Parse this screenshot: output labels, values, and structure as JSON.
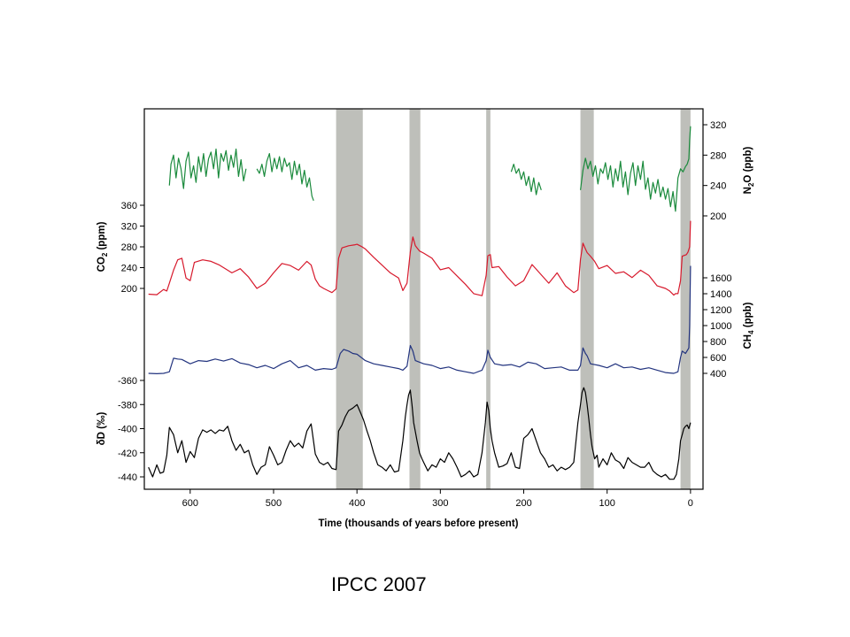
{
  "credit": "IPCC 2007",
  "chart_data": {
    "type": "line",
    "xlabel": "Time (thousands of years before present)",
    "xlim": [
      655,
      -15
    ],
    "x_ticks": [
      600,
      500,
      400,
      300,
      200,
      100,
      0
    ],
    "shaded_intervals": [
      [
        425,
        393
      ],
      [
        337,
        324
      ],
      [
        245,
        240
      ],
      [
        132,
        116
      ],
      [
        12,
        0
      ]
    ],
    "grid": false,
    "axes": {
      "n2o": {
        "label": [
          "N",
          "2",
          "O (ppb)"
        ],
        "side": "right",
        "ticks": [
          200,
          240,
          280,
          320
        ]
      },
      "co2": {
        "label": [
          "CO",
          "2",
          " (ppm)"
        ],
        "side": "left",
        "ticks": [
          200,
          240,
          280,
          320,
          360
        ]
      },
      "ch4": {
        "label": [
          "CH",
          "4",
          " (ppb)"
        ],
        "side": "right",
        "ticks": [
          400,
          600,
          800,
          1000,
          1200,
          1400,
          1600
        ]
      },
      "dd": {
        "label": [
          "δ",
          "D (‰)"
        ],
        "side": "left",
        "ticks": [
          -440,
          -420,
          -400,
          -380,
          -360
        ]
      }
    },
    "series": [
      {
        "key": "n2o",
        "color": "#1a8a3c",
        "segments": [
          {
            "x": [
              625,
              623,
              620,
              617,
              614,
              611,
              608,
              605,
              602,
              599,
              596,
              593,
              590,
              587,
              584,
              581,
              578,
              575,
              572,
              569,
              566,
              563,
              560,
              557,
              554,
              551,
              548,
              545,
              542,
              539,
              536,
              533
            ],
            "y": [
              240,
              268,
              280,
              250,
              276,
              262,
              236,
              272,
              284,
              250,
              266,
              244,
              278,
              258,
              282,
              252,
              275,
              284,
              262,
              288,
              250,
              282,
              272,
              286,
              260,
              280,
              264,
              288,
              252,
              274,
              246,
              262
            ]
          },
          {
            "x": [
              520,
              517,
              514,
              511,
              508,
              505,
              502,
              499,
              496,
              493,
              490,
              487,
              484,
              481,
              478,
              475,
              472,
              469,
              466,
              463,
              460,
              457,
              454,
              452
            ],
            "y": [
              262,
              256,
              268,
              252,
              272,
              282,
              258,
              276,
              262,
              278,
              258,
              276,
              265,
              270,
              248,
              272,
              254,
              268,
              242,
              260,
              238,
              250,
              226,
              220
            ]
          },
          {
            "x": [
              215,
              212,
              209,
              206,
              203,
              200,
              197,
              194,
              191,
              188,
              185,
              182,
              179
            ],
            "y": [
              258,
              268,
              256,
              262,
              248,
              258,
              240,
              252,
              232,
              250,
              228,
              244,
              234
            ]
          },
          {
            "x": [
              132,
              129,
              126,
              123,
              120,
              117,
              114,
              111,
              108,
              105,
              102,
              99,
              96,
              93,
              90,
              87,
              84,
              81,
              78,
              75,
              72,
              69,
              66,
              63,
              60,
              57,
              54,
              51,
              48,
              45,
              42,
              39,
              36,
              33,
              30,
              27,
              24,
              21,
              18,
              15,
              12,
              9,
              6,
              4,
              2,
              1,
              0
            ],
            "y": [
              234,
              260,
              276,
              262,
              272,
              252,
              266,
              242,
              262,
              256,
              270,
              248,
              266,
              238,
              262,
              246,
              272,
              238,
              258,
              228,
              256,
              270,
              240,
              266,
              248,
              272,
              235,
              250,
              222,
              244,
              230,
              248,
              225,
              238,
              222,
              236,
              212,
              232,
              206,
              250,
              262,
              258,
              265,
              268,
              275,
              300,
              318
            ]
          }
        ]
      },
      {
        "key": "co2",
        "color": "#d7192c",
        "segments": [
          {
            "x": [
              650,
              640,
              632,
              628,
              625,
              620,
              615,
              610,
              605,
              600,
              595,
              585,
              575,
              565,
              550,
              540,
              530,
              520,
              510,
              500,
              490,
              480,
              470,
              460,
              455,
              450,
              445,
              440,
              435,
              430,
              425,
              422,
              418,
              410,
              402,
              400,
              395,
              390,
              380,
              370,
              360,
              350,
              345,
              340,
              336,
              333,
              330,
              325,
              320,
              310,
              300,
              290,
              280,
              270,
              260,
              250,
              245,
              243,
              240,
              238,
              230,
              220,
              210,
              200,
              190,
              180,
              170,
              160,
              150,
              140,
              135,
              132,
              129,
              126,
              124,
              120,
              115,
              110,
              100,
              90,
              80,
              70,
              60,
              50,
              40,
              30,
              25,
              20,
              18,
              15,
              12,
              10,
              5,
              3,
              2,
              1,
              0
            ],
            "y": [
              189,
              188,
              198,
              195,
              210,
              235,
              255,
              258,
              220,
              215,
              250,
              255,
              252,
              245,
              230,
              238,
              222,
              200,
              210,
              230,
              248,
              244,
              235,
              252,
              245,
              218,
              205,
              200,
              196,
              192,
              199,
              258,
              278,
              282,
              284,
              285,
              281,
              276,
              260,
              245,
              230,
              220,
              196,
              210,
              270,
              299,
              282,
              272,
              268,
              258,
              236,
              240,
              224,
              208,
              190,
              186,
              225,
              263,
              265,
              240,
              242,
              222,
              205,
              215,
              246,
              228,
              210,
              230,
              205,
              192,
              197,
              256,
              287,
              276,
              269,
              262,
              252,
              238,
              244,
              229,
              232,
              221,
              235,
              225,
              205,
              200,
              195,
              187,
              190,
              190,
              215,
              262,
              265,
              270,
              275,
              280,
              330
            ]
          }
        ]
      },
      {
        "key": "ch4",
        "color": "#23347f",
        "segments": [
          {
            "x": [
              650,
              640,
              632,
              628,
              625,
              620,
              615,
              610,
              600,
              590,
              580,
              570,
              560,
              550,
              540,
              530,
              520,
              510,
              500,
              490,
              480,
              470,
              460,
              450,
              440,
              430,
              425,
              420,
              416,
              410,
              405,
              400,
              395,
              390,
              380,
              370,
              360,
              350,
              345,
              340,
              336,
              333,
              330,
              320,
              310,
              300,
              290,
              280,
              270,
              260,
              250,
              245,
              243,
              240,
              235,
              225,
              215,
              205,
              195,
              185,
              175,
              165,
              155,
              145,
              135,
              132,
              129,
              126,
              124,
              120,
              110,
              100,
              90,
              80,
              70,
              60,
              50,
              40,
              30,
              20,
              15,
              12,
              10,
              6,
              3,
              2,
              1,
              0
            ],
            "y": [
              400,
              395,
              400,
              410,
              420,
              590,
              580,
              575,
              520,
              560,
              550,
              580,
              555,
              585,
              530,
              510,
              470,
              500,
              460,
              520,
              560,
              470,
              500,
              440,
              460,
              450,
              470,
              650,
              700,
              680,
              650,
              640,
              600,
              560,
              520,
              500,
              480,
              460,
              440,
              490,
              750,
              680,
              560,
              520,
              500,
              460,
              480,
              440,
              420,
              400,
              440,
              560,
              690,
              600,
              520,
              500,
              510,
              480,
              540,
              520,
              460,
              470,
              480,
              440,
              440,
              500,
              720,
              650,
              620,
              520,
              500,
              470,
              520,
              470,
              480,
              450,
              470,
              440,
              410,
              400,
              420,
              600,
              680,
              650,
              700,
              720,
              1000,
              1750
            ]
          }
        ]
      },
      {
        "key": "dd",
        "color": "#000000",
        "segments": [
          {
            "x": [
              650,
              645,
              640,
              636,
              632,
              628,
              625,
              620,
              615,
              610,
              605,
              600,
              595,
              590,
              585,
              580,
              575,
              570,
              565,
              560,
              555,
              550,
              545,
              540,
              535,
              530,
              525,
              520,
              515,
              510,
              505,
              500,
              495,
              490,
              485,
              480,
              475,
              470,
              465,
              460,
              455,
              450,
              445,
              440,
              435,
              430,
              425,
              422,
              418,
              414,
              410,
              405,
              400,
              395,
              392,
              388,
              384,
              380,
              375,
              370,
              365,
              360,
              355,
              350,
              345,
              342,
              340,
              338,
              336,
              334,
              332,
              328,
              325,
              322,
              320,
              315,
              310,
              305,
              300,
              295,
              290,
              285,
              280,
              275,
              270,
              265,
              260,
              255,
              250,
              246,
              244,
              242,
              240,
              238,
              235,
              230,
              225,
              220,
              215,
              210,
              205,
              200,
              195,
              190,
              185,
              180,
              175,
              170,
              165,
              160,
              155,
              150,
              145,
              140,
              135,
              132,
              130,
              128,
              126,
              124,
              122,
              120,
              118,
              115,
              112,
              110,
              105,
              100,
              95,
              90,
              85,
              80,
              75,
              70,
              65,
              60,
              55,
              50,
              45,
              40,
              35,
              30,
              25,
              20,
              17,
              14,
              12,
              10,
              8,
              6,
              4,
              2,
              0
            ],
            "y": [
              -432,
              -440,
              -430,
              -437,
              -436,
              -422,
              -399,
              -405,
              -420,
              -410,
              -428,
              -419,
              -424,
              -408,
              -401,
              -403,
              -401,
              -404,
              -401,
              -402,
              -398,
              -410,
              -418,
              -413,
              -420,
              -418,
              -430,
              -438,
              -432,
              -430,
              -415,
              -422,
              -430,
              -428,
              -418,
              -410,
              -415,
              -412,
              -416,
              -402,
              -396,
              -421,
              -428,
              -430,
              -428,
              -433,
              -434,
              -402,
              -397,
              -390,
              -385,
              -383,
              -380,
              -388,
              -393,
              -402,
              -410,
              -420,
              -430,
              -432,
              -435,
              -430,
              -436,
              -435,
              -410,
              -390,
              -380,
              -372,
              -368,
              -380,
              -395,
              -410,
              -420,
              -425,
              -428,
              -435,
              -430,
              -432,
              -425,
              -428,
              -420,
              -425,
              -432,
              -440,
              -438,
              -435,
              -440,
              -438,
              -420,
              -395,
              -378,
              -385,
              -400,
              -410,
              -420,
              -432,
              -431,
              -429,
              -420,
              -432,
              -433,
              -408,
              -405,
              -400,
              -410,
              -420,
              -425,
              -432,
              -430,
              -435,
              -432,
              -434,
              -432,
              -428,
              -395,
              -380,
              -370,
              -366,
              -370,
              -380,
              -392,
              -405,
              -415,
              -425,
              -422,
              -432,
              -425,
              -430,
              -420,
              -426,
              -428,
              -433,
              -424,
              -428,
              -430,
              -432,
              -432,
              -428,
              -435,
              -438,
              -440,
              -438,
              -442,
              -442,
              -438,
              -425,
              -410,
              -405,
              -400,
              -398,
              -397,
              -400,
              -395
            ]
          }
        ]
      }
    ]
  }
}
